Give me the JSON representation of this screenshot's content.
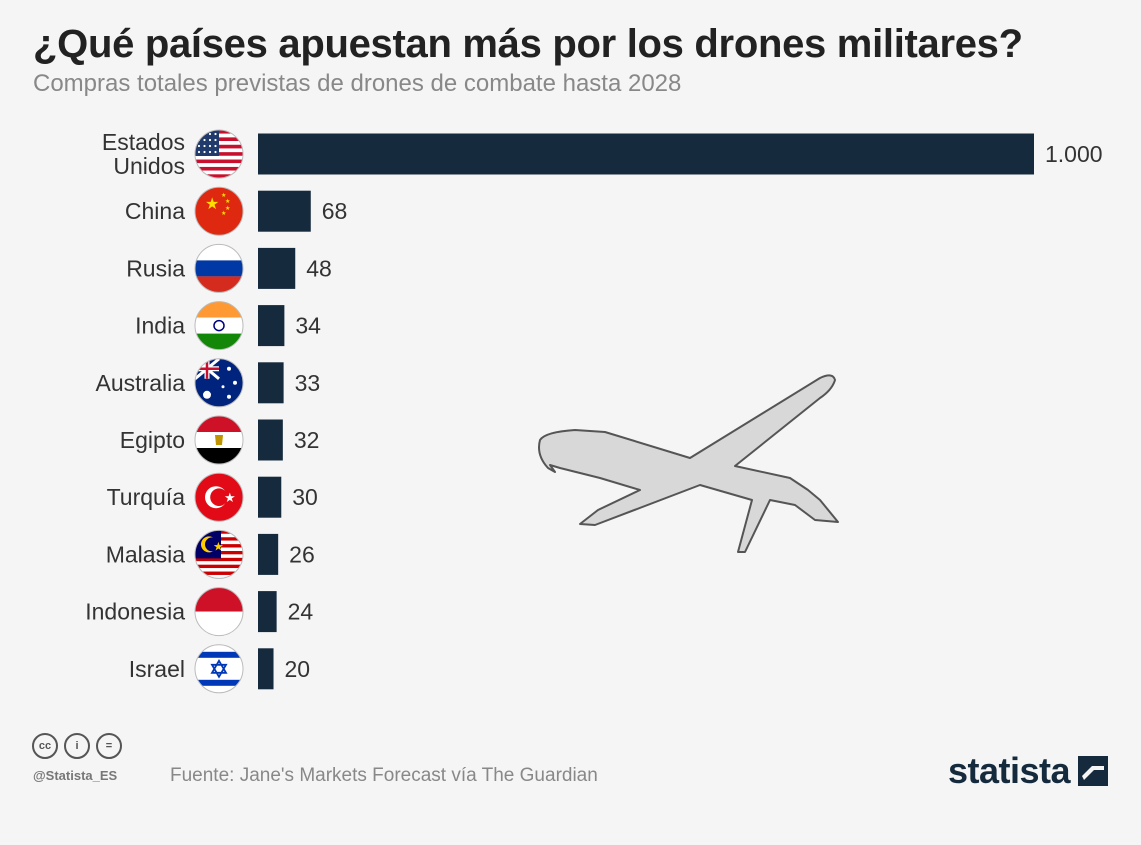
{
  "title": "¿Qué países apuestan más por los drones militares?",
  "subtitle": "Compras totales previstas de drones de combate hasta 2028",
  "chart_data": {
    "type": "bar",
    "orientation": "horizontal",
    "categories": [
      [
        "Estados",
        "Unidos"
      ],
      [
        "China"
      ],
      [
        "Rusia"
      ],
      [
        "India"
      ],
      [
        "Australia"
      ],
      [
        "Egipto"
      ],
      [
        "Turquía"
      ],
      [
        "Malasia"
      ],
      [
        "Indonesia"
      ],
      [
        "Israel"
      ]
    ],
    "values": [
      1000,
      68,
      48,
      34,
      33,
      32,
      30,
      26,
      24,
      20
    ],
    "value_labels": [
      "1.000",
      "68",
      "48",
      "34",
      "33",
      "32",
      "30",
      "26",
      "24",
      "20"
    ],
    "flags": [
      "usa-flag-icon",
      "china-flag-icon",
      "russia-flag-icon",
      "india-flag-icon",
      "australia-flag-icon",
      "egypt-flag-icon",
      "turkey-flag-icon",
      "malaysia-flag-icon",
      "indonesia-flag-icon",
      "israel-flag-icon"
    ],
    "bar_color": "#152a3d",
    "grid": false
  },
  "footer": {
    "handle": "@Statista_ES",
    "source": "Fuente: Jane's Markets Forecast vía The Guardian",
    "brand": "statista"
  }
}
